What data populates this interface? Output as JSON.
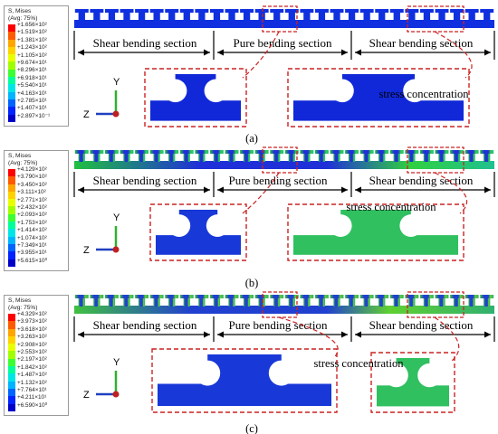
{
  "panels": [
    {
      "caption": "(a)",
      "legend": {
        "title1": "S, Mises",
        "title2": "(Avg: 75%)",
        "values": [
          "+1.656×10²",
          "+1.519×10²",
          "+1.381×10²",
          "+1.243×10²",
          "+1.105×10²",
          "+9.674×10¹",
          "+8.296×10¹",
          "+6.918×10¹",
          "+5.540×10¹",
          "+4.163×10¹",
          "+2.785×10¹",
          "+1.407×10¹",
          "+2.897×10⁻¹"
        ]
      },
      "sections": [
        "Shear bending section",
        "Pure bending section",
        "Shear bending section"
      ],
      "annotation": "stress concentration"
    },
    {
      "caption": "(b)",
      "legend": {
        "title1": "S, Mises",
        "title2": "(Avg: 75%)",
        "values": [
          "+4.129×10²",
          "+3.790×10²",
          "+3.450×10²",
          "+3.111×10²",
          "+2.771×10²",
          "+2.432×10²",
          "+2.093×10²",
          "+1.753×10²",
          "+1.414×10²",
          "+1.074×10²",
          "+7.349×10¹",
          "+3.955×10¹",
          "+5.615×10⁰"
        ]
      },
      "sections": [
        "Shear bending section",
        "Pure bending section",
        "Shear bending section"
      ],
      "annotation": "stress concentration"
    },
    {
      "caption": "(c)",
      "legend": {
        "title1": "S, Mises",
        "title2": "(Avg: 75%)",
        "values": [
          "+4.329×10²",
          "+3.973×10²",
          "+3.618×10²",
          "+3.263×10²",
          "+2.908×10²",
          "+2.553×10²",
          "+2.197×10²",
          "+1.842×10²",
          "+1.487×10²",
          "+1.132×10²",
          "+7.764×10¹",
          "+4.211×10¹",
          "+6.590×10⁰"
        ]
      },
      "sections": [
        "Shear bending section",
        "Pure bending section",
        "Shear bending section"
      ],
      "annotation": "stress concentration"
    }
  ],
  "axes": {
    "y": "Y",
    "z": "Z"
  },
  "colors": {
    "scale": [
      "#ff0000",
      "#ff5a00",
      "#ffa500",
      "#ffd200",
      "#e8ff00",
      "#a0ff00",
      "#3cff33",
      "#00ff9a",
      "#00e6e6",
      "#00b4ff",
      "#0064ff",
      "#0023ff",
      "#0000c8"
    ],
    "dash": "#cc2222",
    "arrow": "#000000"
  }
}
